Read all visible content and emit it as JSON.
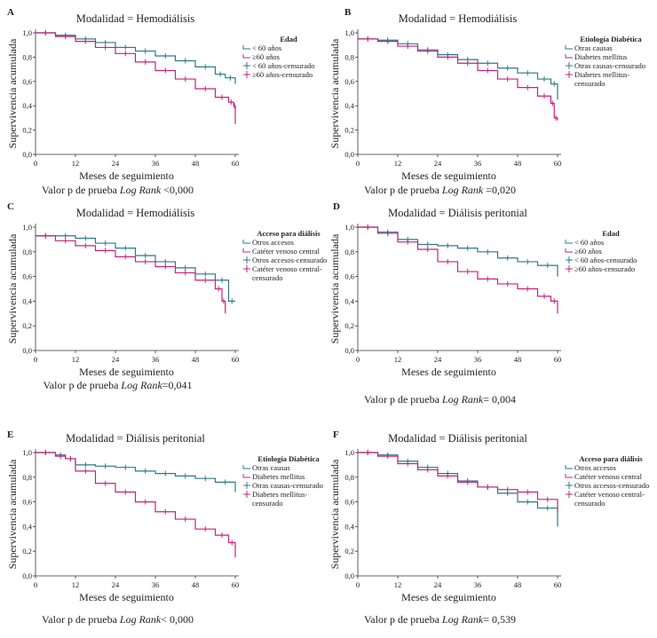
{
  "colors": {
    "group1": "#2b7a86",
    "group2": "#c8207f"
  },
  "chart_data": [
    {
      "panel": "A",
      "type": "line",
      "title": "Modalidad = Hemodiálisis",
      "xlabel": "Meses de seguimiento",
      "ylabel": "Supervivencia acumulada",
      "xticks": [
        "0",
        "12",
        "24",
        "36",
        "48",
        "60"
      ],
      "yticks": [
        "0,0",
        "0,2",
        "0,4",
        "0,6",
        "0,8",
        "1,0"
      ],
      "xlim": [
        0,
        60
      ],
      "ylim": [
        0,
        1
      ],
      "legend_title": "Edad",
      "legend": [
        "< 60 años",
        "≥60 años",
        "< 60 años-censurado",
        "≥60 años-censurado"
      ],
      "pvalue": {
        "prefix": "Valor p de prueba ",
        "test": "Log Rank",
        "value": " <0,000"
      },
      "series": [
        {
          "x": [
            0,
            6,
            12,
            18,
            24,
            30,
            36,
            42,
            48,
            54,
            57,
            60
          ],
          "y": [
            1,
            0.98,
            0.95,
            0.92,
            0.88,
            0.85,
            0.81,
            0.77,
            0.72,
            0.66,
            0.63,
            0.58
          ]
        },
        {
          "x": [
            0,
            6,
            12,
            18,
            24,
            30,
            36,
            42,
            48,
            54,
            58,
            59.5,
            60
          ],
          "y": [
            1,
            0.97,
            0.93,
            0.88,
            0.83,
            0.76,
            0.69,
            0.62,
            0.54,
            0.47,
            0.43,
            0.4,
            0.25
          ]
        }
      ]
    },
    {
      "panel": "B",
      "type": "line",
      "title": "Modalidad = Hemodiálisis",
      "xlabel": "Meses de seguimiento",
      "ylabel": "Supervivencia acumulada",
      "xticks": [
        "0",
        "12",
        "24",
        "36",
        "48",
        "60"
      ],
      "yticks": [
        "0,0",
        "0,2",
        "0,4",
        "0,6",
        "0,8",
        "1,0"
      ],
      "xlim": [
        0,
        60
      ],
      "ylim": [
        0,
        1
      ],
      "legend_title": "Etiología Diabética",
      "legend": [
        "Otras causas",
        "Diabetes mellitus",
        "Otras causas-censurado",
        "Diabetes mellitus-",
        "censurado"
      ],
      "pvalue": {
        "prefix": "Valor p de prueba ",
        "test": "Log Rank",
        "value": " =0,020"
      },
      "series": [
        {
          "x": [
            0,
            6,
            12,
            18,
            24,
            30,
            36,
            42,
            48,
            54,
            58,
            60
          ],
          "y": [
            0.95,
            0.94,
            0.91,
            0.86,
            0.82,
            0.78,
            0.75,
            0.71,
            0.67,
            0.62,
            0.58,
            0.45
          ]
        },
        {
          "x": [
            0,
            6,
            12,
            18,
            24,
            30,
            36,
            42,
            48,
            54,
            58,
            59,
            60
          ],
          "y": [
            0.95,
            0.93,
            0.89,
            0.85,
            0.8,
            0.75,
            0.69,
            0.62,
            0.55,
            0.48,
            0.42,
            0.3,
            0.28
          ]
        }
      ]
    },
    {
      "panel": "C",
      "type": "line",
      "title": "Modalidad = Hemodiálisis",
      "xlabel": "Meses de seguimiento",
      "ylabel": "Supervivencia acumulada",
      "xticks": [
        "0",
        "12",
        "24",
        "36",
        "48",
        "60"
      ],
      "yticks": [
        "0,0",
        "0,2",
        "0,4",
        "0,6",
        "0,8",
        "1,0"
      ],
      "xlim": [
        0,
        60
      ],
      "ylim": [
        0,
        1
      ],
      "legend_title": "Acceso para diálisis",
      "legend": [
        "Otros accesos",
        "Catéter venoso central",
        "Otros accesos-censurado",
        "Catéter venoso central-",
        "censurado"
      ],
      "pvalue": {
        "prefix": "Valor p de prueba ",
        "test": "Log Rank",
        "value": "=0,041"
      },
      "series": [
        {
          "x": [
            0,
            6,
            12,
            18,
            24,
            30,
            36,
            42,
            48,
            54,
            58,
            60
          ],
          "y": [
            0.93,
            0.93,
            0.91,
            0.87,
            0.83,
            0.77,
            0.72,
            0.67,
            0.62,
            0.57,
            0.4,
            0.4
          ]
        },
        {
          "x": [
            0,
            6,
            12,
            18,
            24,
            30,
            36,
            42,
            48,
            54,
            56,
            57
          ],
          "y": [
            0.93,
            0.89,
            0.85,
            0.81,
            0.76,
            0.72,
            0.68,
            0.63,
            0.57,
            0.5,
            0.4,
            0.3
          ]
        }
      ]
    },
    {
      "panel": "D",
      "type": "line",
      "title": "Modalidad = Diálisis peritonial",
      "xlabel": "Meses de seguimiento",
      "ylabel": "Supervivencia acumulada",
      "xticks": [
        "0",
        "12",
        "24",
        "36",
        "48",
        "60"
      ],
      "yticks": [
        "0,0",
        "0,2",
        "0,4",
        "0,6",
        "0,8",
        "1,0"
      ],
      "xlim": [
        0,
        60
      ],
      "ylim": [
        0,
        1
      ],
      "legend_title": "Edad",
      "legend": [
        "< 60 años",
        "≥60 años",
        "< 60 años-censurado",
        "≥60 años-censurado"
      ],
      "pvalue": {
        "prefix": "Valor p de prueba ",
        "test": "Log Rank",
        "value": "= 0,004"
      },
      "series": [
        {
          "x": [
            0,
            6,
            12,
            18,
            24,
            30,
            36,
            42,
            48,
            54,
            60
          ],
          "y": [
            1,
            0.96,
            0.9,
            0.86,
            0.85,
            0.83,
            0.8,
            0.75,
            0.72,
            0.69,
            0.6
          ]
        },
        {
          "x": [
            0,
            6,
            12,
            18,
            24,
            30,
            36,
            42,
            48,
            54,
            58,
            60
          ],
          "y": [
            1,
            0.95,
            0.88,
            0.82,
            0.72,
            0.64,
            0.58,
            0.54,
            0.5,
            0.44,
            0.4,
            0.3
          ]
        }
      ]
    },
    {
      "panel": "E",
      "type": "line",
      "title": "Modalidad = Diálisis peritonial",
      "xlabel": "Meses de seguimiento",
      "ylabel": "Supervivencia acumulada",
      "xticks": [
        "0",
        "12",
        "24",
        "36",
        "48",
        "60"
      ],
      "yticks": [
        "0,0",
        "0,2",
        "0,4",
        "0,6",
        "0,8",
        "1,0"
      ],
      "xlim": [
        0,
        60
      ],
      "ylim": [
        0,
        1
      ],
      "legend_title": "Etiología Diabética",
      "legend": [
        "Otras causas",
        "Diabetes mellitus",
        "Otras causas-censurado",
        "Diabetes mellitus-",
        "censurado"
      ],
      "pvalue": {
        "prefix": "Valor p de prueba ",
        "test": "Log Rank",
        "value": "< 0,000"
      },
      "series": [
        {
          "x": [
            0,
            6,
            9,
            12,
            18,
            24,
            30,
            36,
            42,
            48,
            54,
            60
          ],
          "y": [
            1,
            0.98,
            0.95,
            0.9,
            0.89,
            0.88,
            0.85,
            0.83,
            0.81,
            0.79,
            0.76,
            0.68
          ]
        },
        {
          "x": [
            0,
            6,
            9,
            12,
            18,
            24,
            30,
            36,
            42,
            48,
            54,
            58,
            60
          ],
          "y": [
            1,
            0.97,
            0.95,
            0.85,
            0.75,
            0.68,
            0.6,
            0.52,
            0.46,
            0.38,
            0.33,
            0.27,
            0.15
          ]
        }
      ]
    },
    {
      "panel": "F",
      "type": "line",
      "title": "Modalidad = Diálisis peritonial",
      "xlabel": "Meses de seguimiento",
      "ylabel": "Supervivencia acumulada",
      "xticks": [
        "0",
        "12",
        "24",
        "36",
        "48",
        "60"
      ],
      "yticks": [
        "0,0",
        "0,2",
        "0,4",
        "0,6",
        "0,8",
        "1,0"
      ],
      "xlim": [
        0,
        60
      ],
      "ylim": [
        0,
        1
      ],
      "legend_title": "Acceso para diálisis",
      "legend": [
        "Otros accesos",
        "Catéter venoso central",
        "Otros accesos-censurado",
        "Catéter venoso central-",
        "censurado"
      ],
      "pvalue": {
        "prefix": "Valor p de prueba ",
        "test": "Log Rank",
        "value": "= 0,539"
      },
      "series": [
        {
          "x": [
            0,
            6,
            12,
            18,
            24,
            30,
            36,
            42,
            48,
            54,
            60
          ],
          "y": [
            1,
            0.98,
            0.93,
            0.88,
            0.83,
            0.77,
            0.72,
            0.67,
            0.6,
            0.55,
            0.4
          ]
        },
        {
          "x": [
            0,
            6,
            12,
            18,
            24,
            30,
            36,
            42,
            48,
            54,
            60
          ],
          "y": [
            1,
            0.97,
            0.91,
            0.86,
            0.81,
            0.76,
            0.72,
            0.7,
            0.68,
            0.62,
            0.52
          ]
        }
      ]
    }
  ]
}
